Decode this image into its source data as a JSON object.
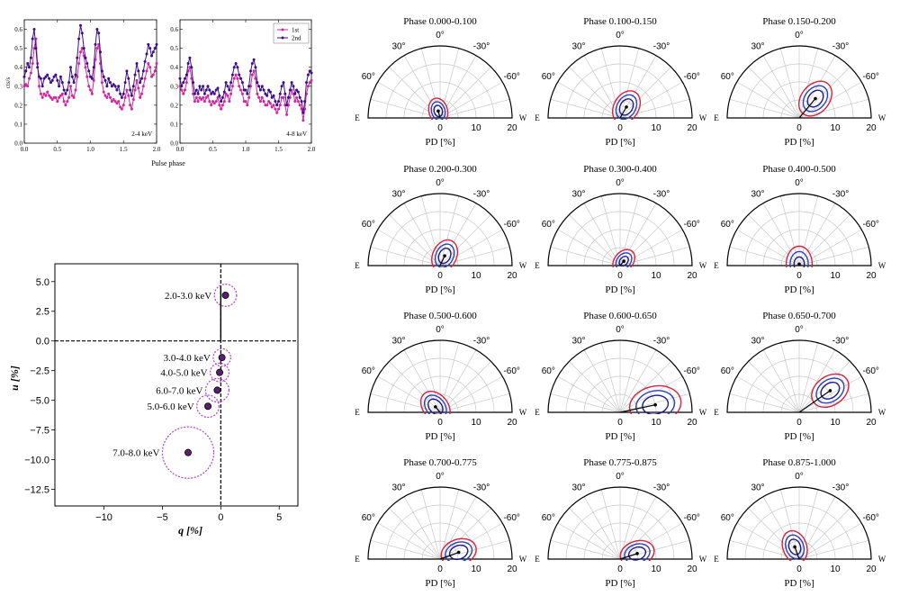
{
  "chart_data": [
    {
      "panel": "light-curves",
      "type": "line",
      "xlabel": "Pulse phase",
      "ylabel": "cts/s",
      "legend": {
        "position": "top-right",
        "entries": [
          "1st",
          "2nd"
        ]
      },
      "colors": {
        "1st": "#d6249f",
        "2nd": "#3b0d8c"
      },
      "subplots": [
        {
          "label": "2-4 keV",
          "xlim": [
            0,
            2
          ],
          "ylim": [
            0,
            0.65
          ],
          "xticks": [
            "0.0",
            "0.5",
            "1.0",
            "1.5",
            "2.0"
          ],
          "yticks": [
            "0.0",
            "0.1",
            "0.2",
            "0.3",
            "0.4",
            "0.5",
            "0.6"
          ],
          "series": [
            {
              "name": "1st",
              "x_step": 0.025,
              "values": [
                0.3,
                0.31,
                0.3,
                0.34,
                0.37,
                0.42,
                0.5,
                0.55,
                0.42,
                0.3,
                0.26,
                0.24,
                0.26,
                0.25,
                0.27,
                0.25,
                0.24,
                0.23,
                0.24,
                0.24,
                0.22,
                0.24,
                0.25,
                0.26,
                0.22,
                0.2,
                0.22,
                0.24,
                0.3,
                0.25,
                0.24,
                0.28,
                0.35,
                0.42,
                0.48,
                0.5,
                0.46,
                0.4,
                0.35,
                0.3,
                0.28,
                0.26,
                0.33,
                0.44,
                0.5,
                0.52,
                0.42,
                0.32,
                0.27,
                0.25,
                0.24,
                0.26,
                0.24,
                0.22,
                0.23,
                0.22,
                0.21,
                0.22,
                0.19,
                0.18,
                0.2,
                0.24,
                0.28,
                0.25,
                0.2,
                0.18,
                0.23,
                0.28,
                0.33,
                0.29,
                0.24,
                0.26,
                0.3,
                0.34,
                0.38,
                0.42,
                0.4,
                0.35,
                0.36,
                0.38,
                0.42
              ]
            },
            {
              "name": "2nd",
              "x_step": 0.025,
              "values": [
                0.35,
                0.38,
                0.42,
                0.4,
                0.45,
                0.55,
                0.6,
                0.5,
                0.4,
                0.35,
                0.34,
                0.3,
                0.34,
                0.35,
                0.36,
                0.34,
                0.32,
                0.33,
                0.35,
                0.36,
                0.33,
                0.3,
                0.35,
                0.32,
                0.28,
                0.26,
                0.28,
                0.32,
                0.4,
                0.35,
                0.32,
                0.36,
                0.45,
                0.55,
                0.62,
                0.58,
                0.5,
                0.45,
                0.42,
                0.38,
                0.35,
                0.34,
                0.4,
                0.52,
                0.6,
                0.58,
                0.48,
                0.38,
                0.35,
                0.33,
                0.3,
                0.34,
                0.32,
                0.3,
                0.31,
                0.3,
                0.28,
                0.3,
                0.26,
                0.24,
                0.26,
                0.32,
                0.38,
                0.34,
                0.28,
                0.25,
                0.3,
                0.36,
                0.42,
                0.38,
                0.32,
                0.34,
                0.38,
                0.43,
                0.47,
                0.52,
                0.5,
                0.46,
                0.48,
                0.5,
                0.52
              ]
            }
          ]
        },
        {
          "label": "4-8 keV",
          "xlim": [
            0,
            2
          ],
          "ylim": [
            0,
            0.65
          ],
          "xticks": [
            "0.0",
            "0.5",
            "1.0",
            "1.5",
            "2.0"
          ],
          "yticks": [
            "0.0",
            "0.1",
            "0.2",
            "0.3",
            "0.4",
            "0.5",
            "0.6"
          ],
          "series": [
            {
              "name": "1st",
              "x_step": 0.025,
              "values": [
                0.3,
                0.28,
                0.26,
                0.28,
                0.32,
                0.38,
                0.4,
                0.34,
                0.26,
                0.22,
                0.24,
                0.22,
                0.24,
                0.23,
                0.24,
                0.22,
                0.24,
                0.25,
                0.22,
                0.2,
                0.22,
                0.21,
                0.22,
                0.24,
                0.2,
                0.18,
                0.2,
                0.22,
                0.26,
                0.25,
                0.22,
                0.26,
                0.3,
                0.34,
                0.36,
                0.34,
                0.3,
                0.28,
                0.26,
                0.22,
                0.22,
                0.2,
                0.24,
                0.3,
                0.36,
                0.38,
                0.34,
                0.26,
                0.24,
                0.22,
                0.24,
                0.22,
                0.2,
                0.2,
                0.22,
                0.21,
                0.19,
                0.2,
                0.18,
                0.16,
                0.18,
                0.2,
                0.24,
                0.24,
                0.2,
                0.15,
                0.2,
                0.24,
                0.28,
                0.26,
                0.22,
                0.24,
                0.22,
                0.2,
                0.18,
                0.12,
                0.18,
                0.26,
                0.3,
                0.32,
                0.33
              ]
            },
            {
              "name": "2nd",
              "x_step": 0.025,
              "values": [
                0.34,
                0.3,
                0.32,
                0.34,
                0.36,
                0.42,
                0.45,
                0.4,
                0.32,
                0.26,
                0.28,
                0.26,
                0.3,
                0.28,
                0.3,
                0.26,
                0.28,
                0.3,
                0.28,
                0.26,
                0.27,
                0.26,
                0.28,
                0.29,
                0.25,
                0.22,
                0.24,
                0.27,
                0.32,
                0.3,
                0.28,
                0.32,
                0.36,
                0.4,
                0.42,
                0.4,
                0.36,
                0.34,
                0.32,
                0.28,
                0.28,
                0.26,
                0.3,
                0.38,
                0.42,
                0.44,
                0.4,
                0.32,
                0.3,
                0.28,
                0.3,
                0.28,
                0.26,
                0.25,
                0.28,
                0.27,
                0.24,
                0.25,
                0.22,
                0.2,
                0.22,
                0.26,
                0.3,
                0.32,
                0.26,
                0.2,
                0.24,
                0.28,
                0.32,
                0.3,
                0.26,
                0.28,
                0.27,
                0.24,
                0.22,
                0.16,
                0.22,
                0.32,
                0.36,
                0.38,
                0.37
              ]
            }
          ]
        }
      ]
    },
    {
      "panel": "qu-plane",
      "type": "scatter",
      "xlabel": "q [%]",
      "ylabel": "u [%]",
      "xlim": [
        -14.2,
        6.6
      ],
      "ylim": [
        -13.9,
        6.5
      ],
      "xticks": [
        -10,
        -5,
        0,
        5
      ],
      "xtick_labels": [
        "−10",
        "−5",
        "0",
        "5"
      ],
      "yticks": [
        5.0,
        2.5,
        0.0,
        -2.5,
        -5.0,
        -7.5,
        -10.0,
        -12.5
      ],
      "ytick_labels": [
        "5.0",
        "2.5",
        "0.0",
        "−2.5",
        "−5.0",
        "−7.5",
        "−10.0",
        "−12.5"
      ],
      "marker_color": "#5c1f6e",
      "error_color": "#b23fcf",
      "points": [
        {
          "label": "2.0-3.0 keV",
          "q": 0.4,
          "u": 3.85,
          "err": 0.95
        },
        {
          "label": "3.0-4.0 keV",
          "q": 0.1,
          "u": -1.4,
          "err": 0.75
        },
        {
          "label": "4.0-5.0 keV",
          "q": -0.1,
          "u": -2.65,
          "err": 0.8
        },
        {
          "label": "6.0-7.0 keV",
          "q": -0.3,
          "u": -4.15,
          "err": 1.0
        },
        {
          "label": "5.0-6.0 keV",
          "q": -1.1,
          "u": -5.5,
          "err": 0.95
        },
        {
          "label": "7.0-8.0 keV",
          "q": -2.8,
          "u": -9.4,
          "err": 2.2
        }
      ]
    },
    {
      "panel": "polar-contours",
      "type": "polar",
      "xlabel": "PD [%]",
      "r_ticks": [
        "0",
        "10",
        "20"
      ],
      "rmax": 20,
      "angle_labels": [
        "0°",
        "30°",
        "-30°",
        "60°",
        "-60°"
      ],
      "side_labels": {
        "left": "E",
        "right": "W"
      },
      "contour_colors": [
        "#1a1a8c",
        "#2b3fbf",
        "#d8213c"
      ],
      "phases": [
        {
          "title": "Phase 0.000-0.100",
          "pd": 2.0,
          "pa": 15,
          "sizes": [
            1.6,
            2.6,
            3.6
          ]
        },
        {
          "title": "Phase 0.100-0.150",
          "pd": 3.5,
          "pa": -30,
          "sizes": [
            2.4,
            3.6,
            4.8
          ]
        },
        {
          "title": "Phase 0.150-0.200",
          "pd": 7.0,
          "pa": -40,
          "sizes": [
            2.6,
            4.0,
            5.4
          ]
        },
        {
          "title": "Phase 0.200-0.300",
          "pd": 3.0,
          "pa": -25,
          "sizes": [
            2.2,
            3.4,
            4.6
          ]
        },
        {
          "title": "Phase 0.300-0.400",
          "pd": 1.6,
          "pa": -40,
          "sizes": [
            1.5,
            2.6,
            3.6
          ]
        },
        {
          "title": "Phase 0.400-0.500",
          "pd": 0.4,
          "pa": 0,
          "sizes": [
            2.0,
            3.5,
            5.0
          ]
        },
        {
          "title": "Phase 0.500-0.600",
          "pd": 2.0,
          "pa": 40,
          "sizes": [
            2.4,
            3.6,
            4.8
          ]
        },
        {
          "title": "Phase 0.600-0.650",
          "pd": 10.0,
          "pa": -78,
          "sizes": [
            3.6,
            5.4,
            7.2
          ]
        },
        {
          "title": "Phase 0.650-0.700",
          "pd": 10.5,
          "pa": -55,
          "sizes": [
            2.8,
            4.2,
            5.6
          ]
        },
        {
          "title": "Phase 0.700-0.775",
          "pd": 5.5,
          "pa": -70,
          "sizes": [
            2.6,
            3.8,
            5.0
          ]
        },
        {
          "title": "Phase 0.775-0.875",
          "pd": 5.0,
          "pa": -72,
          "sizes": [
            2.4,
            3.6,
            4.8
          ]
        },
        {
          "title": "Phase 0.875-1.000",
          "pd": 3.6,
          "pa": 20,
          "sizes": [
            2.2,
            3.4,
            4.6
          ]
        }
      ]
    }
  ]
}
